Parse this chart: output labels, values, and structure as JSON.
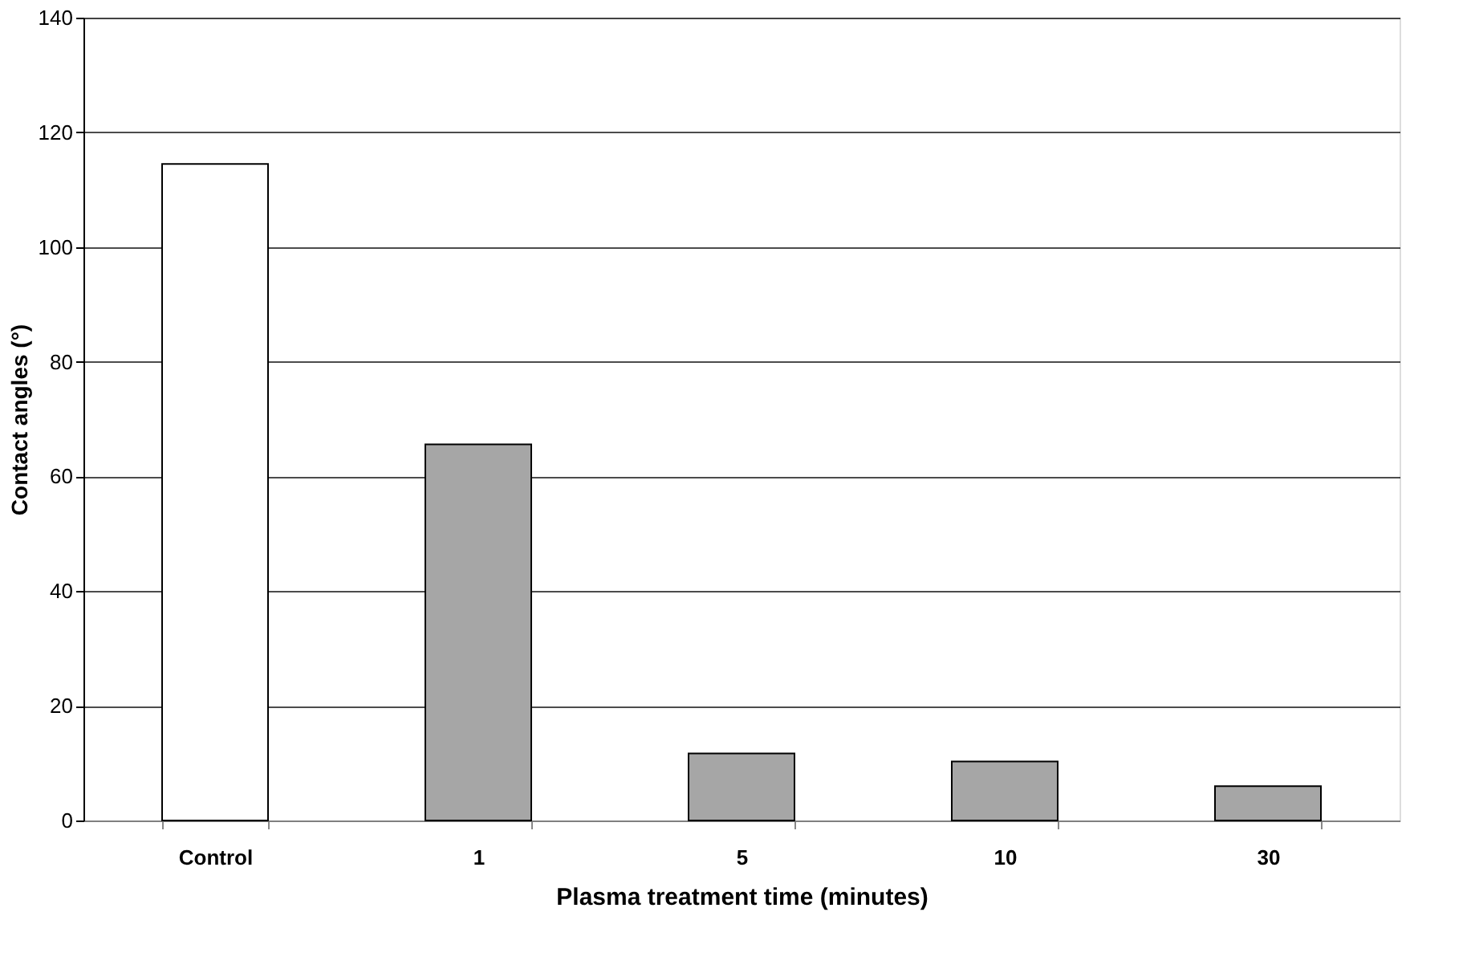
{
  "chart_data": {
    "type": "bar",
    "xlabel": "Plasma treatment time (minutes)",
    "ylabel": "Contact angles (°)",
    "categories": [
      "Control",
      "1",
      "5",
      "10",
      "30"
    ],
    "values": [
      114.5,
      65.6,
      11.7,
      10.3,
      6.0
    ],
    "colors": [
      "#ffffff",
      "#a6a6a6",
      "#a6a6a6",
      "#a6a6a6",
      "#a6a6a6"
    ],
    "ylim": [
      0,
      140
    ],
    "yticks": [
      0,
      20,
      40,
      60,
      80,
      100,
      120,
      140
    ],
    "grid": "y",
    "legend": false
  }
}
